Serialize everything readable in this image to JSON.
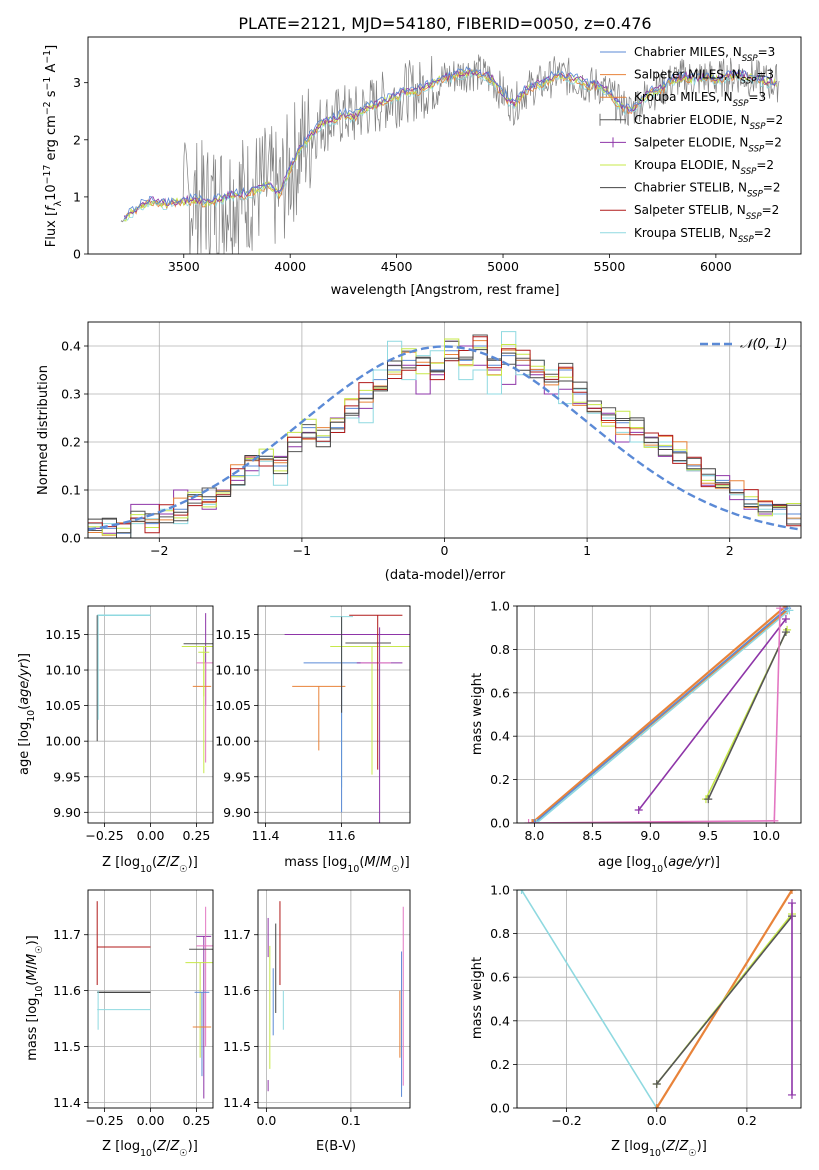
{
  "figure_title": "PLATE=2121, MJD=54180, FIBERID=0050, z=0.476",
  "colors": {
    "Chabrier MILES": "#5b8ad6",
    "Salpeter MILES": "#e8833a",
    "Kroupa MILES": "#e8833a",
    "Chabrier ELODIE": "#555555",
    "Salpeter ELODIE": "#8e35a8",
    "Kroupa ELODIE": "#c7e84a",
    "Chabrier STELIB": "#444444",
    "Salpeter STELIB": "#b01a1a",
    "Kroupa STELIB": "#8fd9e0",
    "normal_curve": "#5b8ad6",
    "pink": "#e377c2",
    "spectrum_data": "#808080"
  },
  "chart_data": [
    {
      "id": "spectrum",
      "type": "line",
      "title": "PLATE=2121, MJD=54180, FIBERID=0050, z=0.476",
      "xlabel": "wavelength [Angstrom, rest frame]",
      "ylabel": "Flux [f_λ 10^-17 erg cm^-2 s^-1 A^-1]",
      "xlim": [
        3050,
        6400
      ],
      "ylim": [
        0,
        3.8
      ],
      "xticks": [
        3500,
        4000,
        4500,
        5000,
        5500,
        6000
      ],
      "yticks": [
        0,
        1,
        2,
        3
      ],
      "legend_position": "right",
      "legend": [
        "Chabrier MILES, N_SSP=3",
        "Salpeter MILES, N_SSP=3",
        "Kroupa MILES, N_SSP=3",
        "Chabrier ELODIE, N_SSP=2",
        "Salpeter ELODIE, N_SSP=2",
        "Kroupa ELODIE, N_SSP=2",
        "Chabrier STELIB, N_SSP=2",
        "Salpeter STELIB, N_SSP=2",
        "Kroupa STELIB, N_SSP=2"
      ],
      "series": [
        {
          "name": "model continuum",
          "x": [
            3200,
            3250,
            3300,
            3350,
            3400,
            3450,
            3500,
            3550,
            3600,
            3650,
            3700,
            3750,
            3800,
            3850,
            3900,
            3950,
            4000,
            4050,
            4100,
            4150,
            4200,
            4250,
            4300,
            4350,
            4400,
            4450,
            4500,
            4550,
            4600,
            4650,
            4700,
            4750,
            4800,
            4850,
            4900,
            4950,
            5000,
            5050,
            5100,
            5150,
            5200,
            5250,
            5300,
            5350,
            5400,
            5450,
            5500,
            5550,
            5600,
            5650,
            5700,
            5750,
            5800,
            5850,
            5900,
            5950,
            6000,
            6050,
            6100,
            6150,
            6200,
            6250
          ],
          "y": [
            0.55,
            0.72,
            0.85,
            0.92,
            0.88,
            0.9,
            0.92,
            0.95,
            0.9,
            0.93,
            1.0,
            1.05,
            1.05,
            1.15,
            1.2,
            1.05,
            1.5,
            1.85,
            2.1,
            2.3,
            2.35,
            2.45,
            2.4,
            2.55,
            2.6,
            2.7,
            2.75,
            2.85,
            2.85,
            2.95,
            3.05,
            3.1,
            3.15,
            3.2,
            3.15,
            3.05,
            2.8,
            2.6,
            2.85,
            2.95,
            3.0,
            3.15,
            3.1,
            3.05,
            2.95,
            2.95,
            2.8,
            2.6,
            2.5,
            2.7,
            2.85,
            2.9,
            3.05,
            3.1,
            3.05,
            3.1,
            3.05,
            3.1,
            3.15,
            3.1,
            3.05,
            3.0
          ]
        }
      ]
    },
    {
      "id": "residuals",
      "type": "line",
      "xlabel": "(data-model)/error",
      "ylabel": "Normed distribution",
      "xlim": [
        -2.5,
        2.5
      ],
      "ylim": [
        0,
        0.45
      ],
      "xticks": [
        -2,
        -1,
        0,
        1,
        2
      ],
      "yticks": [
        0.0,
        0.1,
        0.2,
        0.3,
        0.4
      ],
      "grid": true,
      "legend": [
        "N(0,1)"
      ],
      "legend_position": "top-right",
      "histogram_bins": [
        -2.5,
        -2.4,
        -2.3,
        -2.2,
        -2.1,
        -2.0,
        -1.9,
        -1.8,
        -1.7,
        -1.6,
        -1.5,
        -1.4,
        -1.3,
        -1.2,
        -1.1,
        -1.0,
        -0.9,
        -0.8,
        -0.7,
        -0.6,
        -0.5,
        -0.4,
        -0.3,
        -0.2,
        -0.1,
        0.0,
        0.1,
        0.2,
        0.3,
        0.4,
        0.5,
        0.6,
        0.7,
        0.8,
        0.9,
        1.0,
        1.1,
        1.2,
        1.3,
        1.4,
        1.5,
        1.6,
        1.7,
        1.8,
        1.9,
        2.0,
        2.1,
        2.2,
        2.3,
        2.4,
        2.5
      ],
      "histograms": [
        {
          "series": "Chabrier MILES",
          "values": [
            0.02,
            0.02,
            0.01,
            0.04,
            0.03,
            0.05,
            0.06,
            0.09,
            0.08,
            0.1,
            0.13,
            0.15,
            0.17,
            0.15,
            0.2,
            0.23,
            0.21,
            0.23,
            0.27,
            0.3,
            0.33,
            0.35,
            0.37,
            0.36,
            0.35,
            0.39,
            0.37,
            0.4,
            0.36,
            0.38,
            0.37,
            0.35,
            0.33,
            0.35,
            0.3,
            0.27,
            0.25,
            0.24,
            0.23,
            0.21,
            0.19,
            0.18,
            0.15,
            0.13,
            0.12,
            0.1,
            0.08,
            0.07,
            0.06,
            0.05
          ]
        },
        {
          "series": "Salpeter ELODIE",
          "values": [
            0.02,
            0.01,
            0.03,
            0.07,
            0.07,
            0.05,
            0.1,
            0.08,
            0.06,
            0.1,
            0.12,
            0.14,
            0.15,
            0.17,
            0.19,
            0.22,
            0.2,
            0.25,
            0.25,
            0.27,
            0.31,
            0.36,
            0.36,
            0.3,
            0.34,
            0.41,
            0.4,
            0.36,
            0.35,
            0.32,
            0.36,
            0.34,
            0.3,
            0.31,
            0.28,
            0.27,
            0.26,
            0.2,
            0.22,
            0.21,
            0.17,
            0.16,
            0.14,
            0.11,
            0.13,
            0.08,
            0.06,
            0.05,
            0.07,
            0.04
          ]
        },
        {
          "series": "Kroupa STELIB",
          "values": [
            0.03,
            0.03,
            0.0,
            0.03,
            0.04,
            0.06,
            0.03,
            0.09,
            0.07,
            0.09,
            0.11,
            0.13,
            0.16,
            0.11,
            0.2,
            0.21,
            0.2,
            0.22,
            0.25,
            0.24,
            0.35,
            0.41,
            0.33,
            0.38,
            0.39,
            0.37,
            0.33,
            0.35,
            0.3,
            0.43,
            0.34,
            0.37,
            0.35,
            0.28,
            0.31,
            0.26,
            0.25,
            0.22,
            0.2,
            0.19,
            0.2,
            0.16,
            0.14,
            0.13,
            0.11,
            0.09,
            0.07,
            0.06,
            0.05,
            0.04
          ]
        }
      ],
      "normal_curve": {
        "mu": 0,
        "sigma": 1
      }
    },
    {
      "id": "age-vs-Z",
      "type": "scatter",
      "xlabel": "Z [log10(Z/Z☉)]",
      "ylabel": "age [log10(age/yr)]",
      "xlim": [
        -0.34,
        0.34
      ],
      "ylim": [
        9.885,
        10.19
      ],
      "xticks": [
        -0.25,
        0.0,
        0.25
      ],
      "yticks": [
        9.9,
        9.95,
        10.0,
        10.05,
        10.1,
        10.15
      ],
      "grid": true
    },
    {
      "id": "age-vs-mass",
      "type": "scatter",
      "xlabel": "mass [log10(M/M☉)]",
      "xlim": [
        11.38,
        11.78
      ],
      "ylim": [
        9.885,
        10.19
      ],
      "xticks": [
        11.4,
        11.6
      ],
      "yticks": [
        9.9,
        9.95,
        10.0,
        10.05,
        10.1,
        10.15
      ],
      "grid": true
    },
    {
      "id": "mass-weight-vs-age",
      "type": "line",
      "xlabel": "age [log10(age/yr)]",
      "ylabel": "mass weight",
      "xlim": [
        7.85,
        10.3
      ],
      "ylim": [
        0,
        1
      ],
      "xticks": [
        8.0,
        8.5,
        9.0,
        9.5,
        10.0
      ],
      "yticks": [
        0.0,
        0.2,
        0.4,
        0.6,
        0.8,
        1.0
      ],
      "grid": true,
      "series": [
        {
          "name": "Salpeter MILES",
          "x": [
            7.98,
            10.17
          ],
          "y": [
            0.0,
            1.0
          ]
        },
        {
          "name": "Kroupa MILES",
          "x": [
            7.99,
            10.18
          ],
          "y": [
            0.0,
            0.98
          ]
        },
        {
          "name": "Chabrier MILES",
          "x": [
            8.0,
            10.18
          ],
          "y": [
            0.0,
            0.99
          ]
        },
        {
          "name": "Kroupa STELIB",
          "x": [
            8.02,
            10.2
          ],
          "y": [
            0.0,
            0.98
          ]
        },
        {
          "name": "Salpeter ELODIE",
          "x": [
            8.9,
            10.17
          ],
          "y": [
            0.06,
            0.94
          ]
        },
        {
          "name": "Kroupa ELODIE",
          "x": [
            9.48,
            10.18
          ],
          "y": [
            0.11,
            0.89
          ]
        },
        {
          "name": "Chabrier ELODIE",
          "x": [
            9.5,
            10.17
          ],
          "y": [
            0.11,
            0.88
          ]
        },
        {
          "name": "pink",
          "x": [
            7.95,
            10.07
          ],
          "y": [
            0.0,
            0.01
          ]
        },
        {
          "name": "pink-vertical",
          "x": [
            10.07,
            10.12
          ],
          "y": [
            0.01,
            0.99
          ]
        }
      ]
    },
    {
      "id": "mass-vs-Z",
      "type": "scatter",
      "xlabel": "Z [log10(Z/Z☉)]",
      "ylabel": "mass [log10(M/M☉)]",
      "xlim": [
        -0.34,
        0.34
      ],
      "ylim": [
        11.39,
        11.78
      ],
      "xticks": [
        -0.25,
        0.0,
        0.25
      ],
      "yticks": [
        11.4,
        11.5,
        11.6,
        11.7
      ],
      "grid": true
    },
    {
      "id": "mass-vs-ebv",
      "type": "scatter",
      "xlabel": "E(B-V)",
      "xlim": [
        -0.01,
        0.17
      ],
      "ylim": [
        11.39,
        11.78
      ],
      "xticks": [
        0.0,
        0.1
      ],
      "yticks": [
        11.4,
        11.5,
        11.6,
        11.7
      ],
      "grid": true
    },
    {
      "id": "mass-weight-vs-Z",
      "type": "line",
      "xlabel": "Z [log10(Z/Z☉)]",
      "ylabel": "mass weight",
      "xlim": [
        -0.31,
        0.32
      ],
      "ylim": [
        0,
        1
      ],
      "xticks": [
        -0.2,
        0.0,
        0.2
      ],
      "yticks": [
        0.0,
        0.2,
        0.4,
        0.6,
        0.8,
        1.0
      ],
      "grid": true,
      "series": [
        {
          "name": "Kroupa STELIB",
          "x": [
            -0.3,
            0.0
          ],
          "y": [
            1.0,
            0.0
          ]
        },
        {
          "name": "Salpeter MILES",
          "x": [
            0.0,
            0.3
          ],
          "y": [
            0.0,
            1.0
          ]
        },
        {
          "name": "Kroupa ELODIE",
          "x": [
            0.0,
            0.3
          ],
          "y": [
            0.11,
            0.89
          ]
        },
        {
          "name": "Chabrier ELODIE",
          "x": [
            0.0,
            0.3
          ],
          "y": [
            0.11,
            0.88
          ]
        },
        {
          "name": "Salpeter ELODIE",
          "x": [
            0.3,
            0.3
          ],
          "y": [
            0.06,
            0.94
          ]
        }
      ]
    }
  ],
  "legend_labels": [
    {
      "text": "Chabrier MILES, N",
      "sub": "SSP",
      "suffix": "=3"
    },
    {
      "text": "Salpeter MILES, N",
      "sub": "SSP",
      "suffix": "=3"
    },
    {
      "text": "Kroupa MILES, N",
      "sub": "SSP",
      "suffix": "=3"
    },
    {
      "text": "Chabrier ELODIE, N",
      "sub": "SSP",
      "suffix": "=2"
    },
    {
      "text": "Salpeter ELODIE, N",
      "sub": "SSP",
      "suffix": "=2"
    },
    {
      "text": "Kroupa ELODIE, N",
      "sub": "SSP",
      "suffix": "=2"
    },
    {
      "text": "Chabrier STELIB, N",
      "sub": "SSP",
      "suffix": "=2"
    },
    {
      "text": "Salpeter STELIB, N",
      "sub": "SSP",
      "suffix": "=2"
    },
    {
      "text": "Kroupa STELIB, N",
      "sub": "SSP",
      "suffix": "=2"
    }
  ],
  "normal_legend": "𝒩(0, 1)"
}
